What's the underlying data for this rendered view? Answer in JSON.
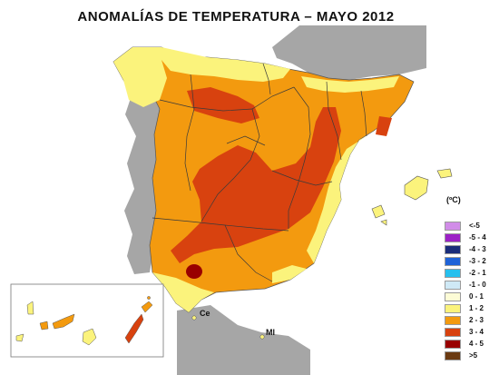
{
  "title": "ANOMALÍAS DE TEMPERATURA – MAYO 2012",
  "legend": {
    "unit": "(ºC)",
    "items": [
      {
        "label": "<-5",
        "color": "#d18ce8"
      },
      {
        "label": "-5 - 4",
        "color": "#9c21c6"
      },
      {
        "label": "-4 - 3",
        "color": "#1a2d7a"
      },
      {
        "label": "-3 - 2",
        "color": "#1f63d8"
      },
      {
        "label": "-2 - 1",
        "color": "#27c0ee"
      },
      {
        "label": "-1 - 0",
        "color": "#cfe9f6"
      },
      {
        "label": "0 - 1",
        "color": "#fdfcd6"
      },
      {
        "label": "1 - 2",
        "color": "#fbf37c"
      },
      {
        "label": "2 - 3",
        "color": "#f39a0f"
      },
      {
        "label": "3 - 4",
        "color": "#d8420f"
      },
      {
        "label": "4 - 5",
        "color": "#990000"
      },
      {
        "label": ">5",
        "color": "#6b3a12"
      }
    ]
  },
  "cities": [
    {
      "label": "Ce"
    },
    {
      "label": "Ml"
    }
  ]
}
